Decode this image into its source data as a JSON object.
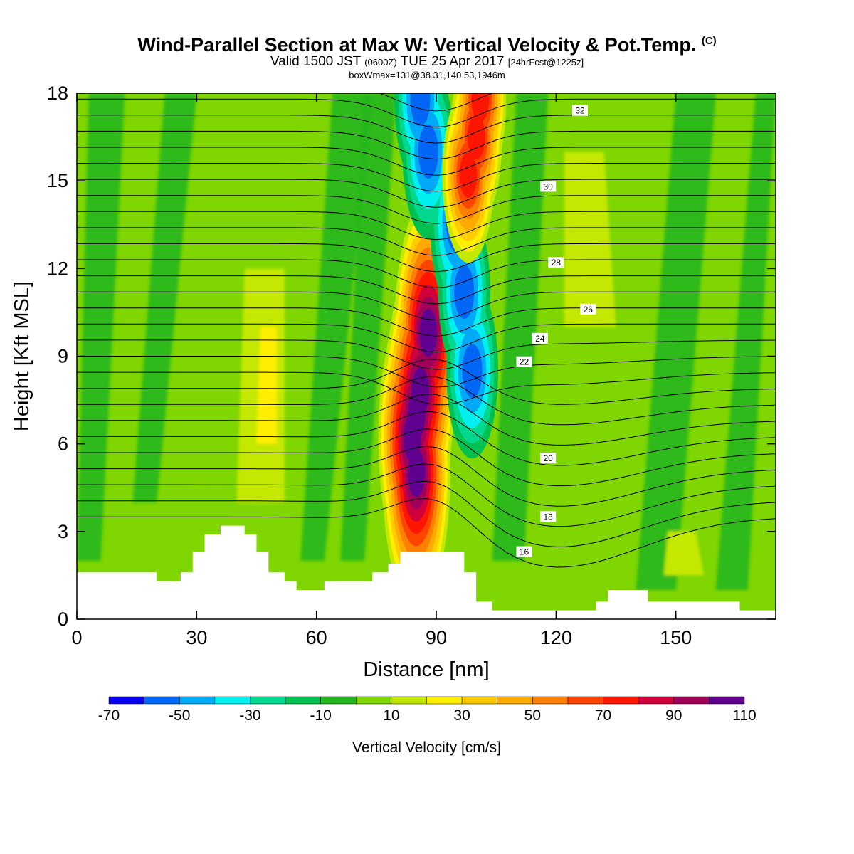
{
  "header": {
    "title": "Wind-Parallel Section at Max W: Vertical Velocity & Pot.Temp.",
    "copyright": "(C)",
    "valid_prefix": "Valid 1500 JST",
    "valid_utc": "(0600Z)",
    "valid_date": "TUE 25 Apr 2017",
    "forecast": "[24hrFcst@1225z]",
    "box_info": "boxWmax=131@38.31,140.53,1946m"
  },
  "chart_data": {
    "type": "heatmap",
    "xlabel": "Distance [nm]",
    "ylabel": "Height [Kft MSL]",
    "xlim": [
      0,
      175
    ],
    "ylim": [
      0,
      18
    ],
    "x_ticks": [
      0,
      30,
      60,
      90,
      120,
      150
    ],
    "y_ticks": [
      0,
      3,
      6,
      9,
      12,
      15,
      18
    ],
    "colorbar": {
      "title": "Vertical Velocity [cm/s]",
      "levels": [
        -70,
        -60,
        -50,
        -40,
        -30,
        -20,
        -10,
        0,
        10,
        20,
        30,
        40,
        50,
        60,
        70,
        80,
        90,
        100,
        110
      ],
      "tick_labels": [
        "-70",
        "-50",
        "-30",
        "-10",
        "10",
        "30",
        "50",
        "70",
        "90",
        "110"
      ],
      "colors": [
        "#0a00f0",
        "#0066f5",
        "#00aaf8",
        "#00f0f0",
        "#00d890",
        "#00c050",
        "#22b51e",
        "#7fd600",
        "#c5e800",
        "#ffee00",
        "#ffcc00",
        "#ffaa00",
        "#ff7f00",
        "#ff4400",
        "#ff1500",
        "#d0003a",
        "#a0005a",
        "#600090"
      ]
    },
    "background_level": [
      0,
      10
    ],
    "terrain": [
      [
        0,
        1.6
      ],
      [
        20,
        1.6
      ],
      [
        20,
        1.3
      ],
      [
        26,
        1.3
      ],
      [
        26,
        1.6
      ],
      [
        29,
        1.6
      ],
      [
        29,
        2.3
      ],
      [
        32,
        2.3
      ],
      [
        32,
        2.9
      ],
      [
        36,
        2.9
      ],
      [
        36,
        3.2
      ],
      [
        42,
        3.2
      ],
      [
        42,
        2.9
      ],
      [
        45,
        2.9
      ],
      [
        45,
        2.3
      ],
      [
        48,
        2.3
      ],
      [
        48,
        1.6
      ],
      [
        52,
        1.6
      ],
      [
        52,
        1.3
      ],
      [
        55,
        1.3
      ],
      [
        55,
        1.0
      ],
      [
        62,
        1.0
      ],
      [
        62,
        1.3
      ],
      [
        74,
        1.3
      ],
      [
        74,
        1.6
      ],
      [
        78,
        1.6
      ],
      [
        78,
        1.9
      ],
      [
        81,
        1.9
      ],
      [
        81,
        2.3
      ],
      [
        97,
        2.3
      ],
      [
        97,
        1.6
      ],
      [
        100,
        1.6
      ],
      [
        100,
        0.6
      ],
      [
        104,
        0.6
      ],
      [
        104,
        0.3
      ],
      [
        130,
        0.3
      ],
      [
        130,
        0.6
      ],
      [
        133,
        0.6
      ],
      [
        133,
        1.0
      ],
      [
        143,
        1.0
      ],
      [
        143,
        0.6
      ],
      [
        166,
        0.6
      ],
      [
        166,
        0.3
      ],
      [
        175,
        0.3
      ]
    ],
    "series": [
      {
        "name": "updraft",
        "level_range": [
          10,
          110
        ],
        "points": [
          [
            85,
            7.0
          ],
          [
            84,
            6.2
          ],
          [
            86,
            7.8
          ],
          [
            88,
            9.8
          ],
          [
            85,
            5.0
          ]
        ]
      },
      {
        "name": "downdraft",
        "level_range": [
          -60,
          -10
        ],
        "points": [
          [
            86,
            17.8
          ],
          [
            88,
            16.0
          ],
          [
            95,
            13.5
          ],
          [
            97,
            11.2
          ],
          [
            99,
            8.5
          ]
        ]
      },
      {
        "name": "upper updraft",
        "level_range": [
          10,
          80
        ],
        "points": [
          [
            101,
            17.8
          ],
          [
            100,
            16.5
          ],
          [
            98,
            15.2
          ]
        ]
      }
    ],
    "isentrope_labels": [
      "16",
      "18",
      "20",
      "22",
      "24",
      "26",
      "28",
      "30",
      "32"
    ]
  }
}
